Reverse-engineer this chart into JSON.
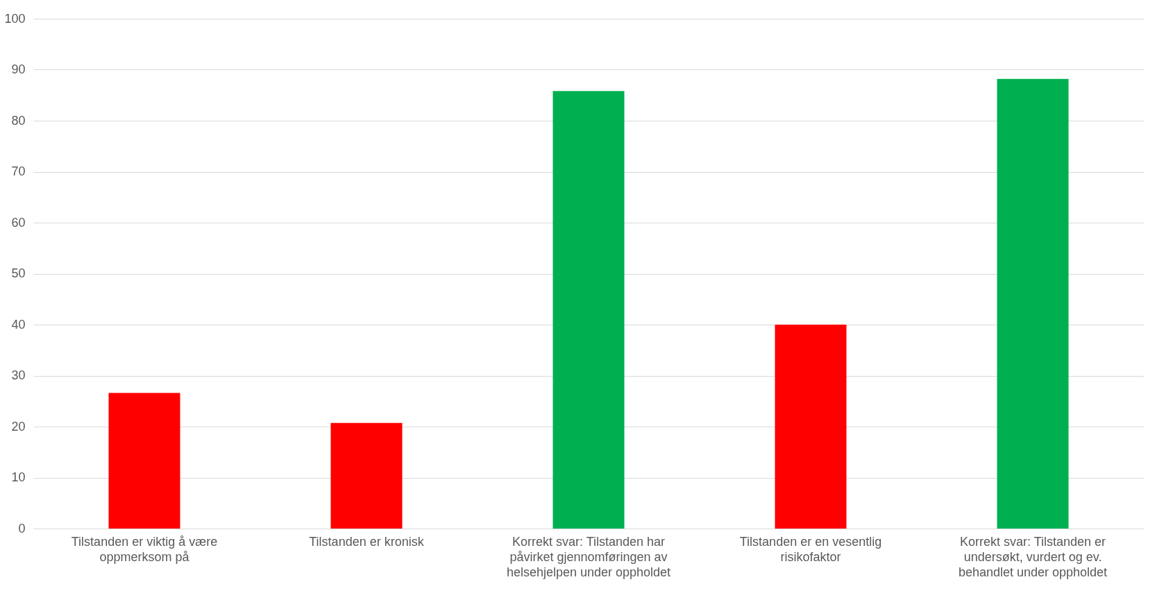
{
  "chart_data": {
    "type": "bar",
    "categories": [
      "Tilstanden er viktig å være oppmerksom på",
      "Tilstanden er kronisk",
      "Korrekt svar: Tilstanden har påvirket gjennomføringen av helsehjelpen under oppholdet",
      "Tilstanden er en vesentlig risikofaktor",
      "Korrekt svar:  Tilstanden er undersøkt, vurdert og ev. behandlet under oppholdet"
    ],
    "values": [
      26.6,
      20.7,
      85.8,
      40,
      88.2
    ],
    "colors": [
      "#ff0000",
      "#ff0000",
      "#00b050",
      "#ff0000",
      "#00b050"
    ],
    "ylim": [
      0,
      100
    ],
    "yticks": [
      0,
      10,
      20,
      30,
      40,
      50,
      60,
      70,
      80,
      90,
      100
    ],
    "grid": "y"
  }
}
